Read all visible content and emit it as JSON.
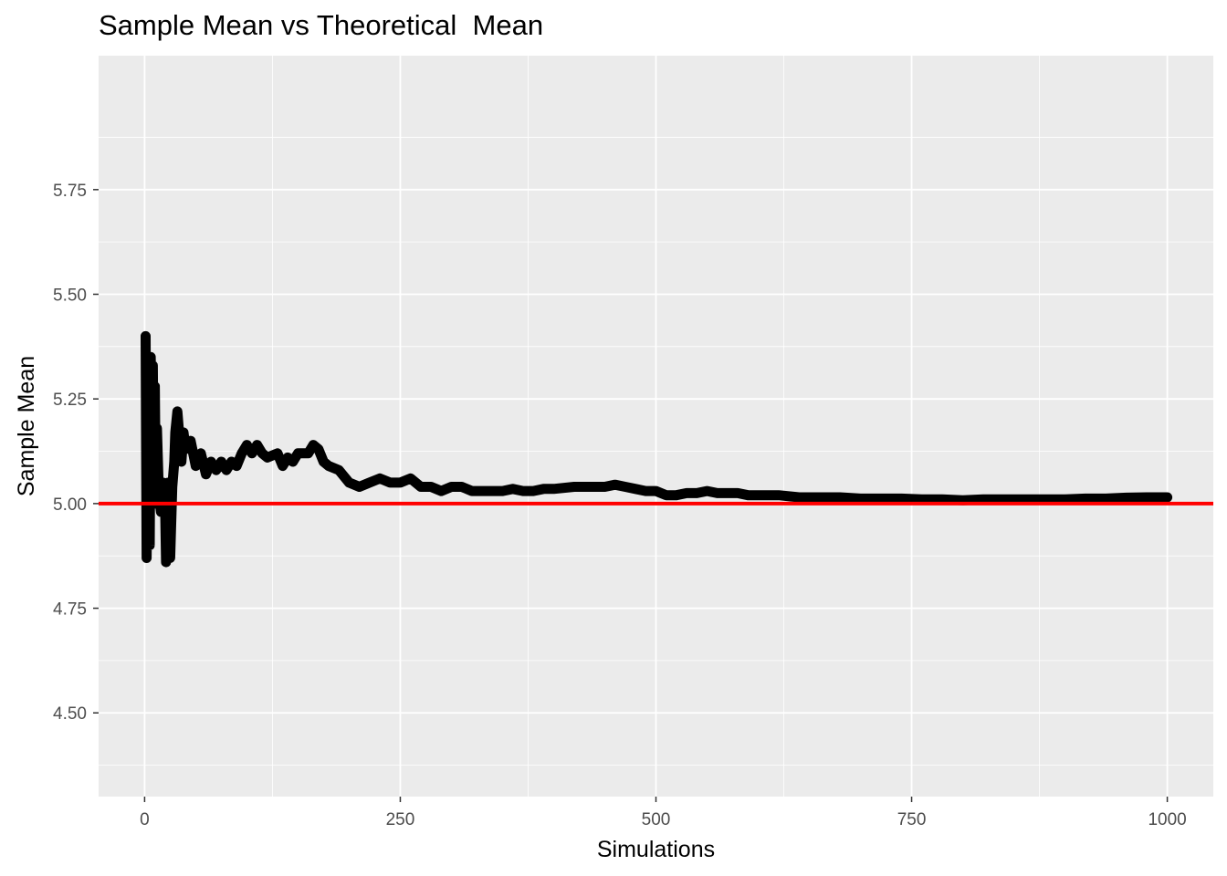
{
  "chart_data": {
    "type": "line",
    "title": "Sample Mean vs Theoretical  Mean",
    "xlabel": "Simulations",
    "ylabel": "Sample Mean",
    "xlim": [
      -45,
      1045
    ],
    "ylim": [
      4.3,
      6.07
    ],
    "x_ticks": [
      0,
      250,
      500,
      750,
      1000
    ],
    "x_tick_labels": [
      "0",
      "250",
      "500",
      "750",
      "1000"
    ],
    "y_ticks": [
      4.5,
      4.75,
      5.0,
      5.25,
      5.5,
      5.75
    ],
    "y_tick_labels": [
      "4.50",
      "4.75",
      "5.00",
      "5.25",
      "5.50",
      "5.75"
    ],
    "grid": true,
    "panel_background": "#ebebeb",
    "series": [
      {
        "color": "#000000",
        "points": [
          [
            1,
            5.4
          ],
          [
            2,
            4.87
          ],
          [
            3,
            5.15
          ],
          [
            4,
            5.0
          ],
          [
            5,
            4.9
          ],
          [
            6,
            5.35
          ],
          [
            7,
            5.2
          ],
          [
            8,
            5.33
          ],
          [
            9,
            5.02
          ],
          [
            10,
            5.28
          ],
          [
            11,
            5.0
          ],
          [
            12,
            5.18
          ],
          [
            14,
            5.02
          ],
          [
            16,
            4.98
          ],
          [
            18,
            5.05
          ],
          [
            20,
            5.0
          ],
          [
            21,
            4.86
          ],
          [
            22,
            4.9
          ],
          [
            23,
            5.05
          ],
          [
            25,
            4.87
          ],
          [
            27,
            5.04
          ],
          [
            29,
            5.1
          ],
          [
            30,
            5.17
          ],
          [
            32,
            5.22
          ],
          [
            34,
            5.16
          ],
          [
            36,
            5.1
          ],
          [
            38,
            5.17
          ],
          [
            40,
            5.13
          ],
          [
            45,
            5.15
          ],
          [
            50,
            5.09
          ],
          [
            55,
            5.12
          ],
          [
            60,
            5.07
          ],
          [
            65,
            5.1
          ],
          [
            70,
            5.08
          ],
          [
            75,
            5.1
          ],
          [
            80,
            5.08
          ],
          [
            85,
            5.1
          ],
          [
            90,
            5.09
          ],
          [
            95,
            5.12
          ],
          [
            100,
            5.14
          ],
          [
            105,
            5.12
          ],
          [
            110,
            5.14
          ],
          [
            115,
            5.12
          ],
          [
            120,
            5.11
          ],
          [
            130,
            5.12
          ],
          [
            135,
            5.09
          ],
          [
            140,
            5.11
          ],
          [
            145,
            5.1
          ],
          [
            150,
            5.12
          ],
          [
            160,
            5.12
          ],
          [
            165,
            5.14
          ],
          [
            170,
            5.13
          ],
          [
            175,
            5.1
          ],
          [
            180,
            5.09
          ],
          [
            190,
            5.08
          ],
          [
            200,
            5.05
          ],
          [
            210,
            5.04
          ],
          [
            220,
            5.05
          ],
          [
            230,
            5.06
          ],
          [
            240,
            5.05
          ],
          [
            250,
            5.05
          ],
          [
            260,
            5.06
          ],
          [
            270,
            5.04
          ],
          [
            280,
            5.04
          ],
          [
            290,
            5.03
          ],
          [
            300,
            5.04
          ],
          [
            310,
            5.04
          ],
          [
            320,
            5.03
          ],
          [
            330,
            5.03
          ],
          [
            340,
            5.03
          ],
          [
            350,
            5.03
          ],
          [
            360,
            5.035
          ],
          [
            370,
            5.03
          ],
          [
            380,
            5.03
          ],
          [
            390,
            5.035
          ],
          [
            400,
            5.035
          ],
          [
            420,
            5.04
          ],
          [
            440,
            5.04
          ],
          [
            450,
            5.04
          ],
          [
            460,
            5.045
          ],
          [
            470,
            5.04
          ],
          [
            480,
            5.035
          ],
          [
            490,
            5.03
          ],
          [
            500,
            5.03
          ],
          [
            510,
            5.02
          ],
          [
            520,
            5.02
          ],
          [
            530,
            5.025
          ],
          [
            540,
            5.025
          ],
          [
            550,
            5.03
          ],
          [
            560,
            5.025
          ],
          [
            570,
            5.025
          ],
          [
            580,
            5.025
          ],
          [
            590,
            5.02
          ],
          [
            600,
            5.02
          ],
          [
            620,
            5.02
          ],
          [
            640,
            5.015
          ],
          [
            660,
            5.015
          ],
          [
            680,
            5.015
          ],
          [
            700,
            5.012
          ],
          [
            720,
            5.012
          ],
          [
            740,
            5.012
          ],
          [
            760,
            5.01
          ],
          [
            780,
            5.01
          ],
          [
            800,
            5.008
          ],
          [
            820,
            5.01
          ],
          [
            840,
            5.01
          ],
          [
            860,
            5.01
          ],
          [
            880,
            5.01
          ],
          [
            900,
            5.01
          ],
          [
            920,
            5.012
          ],
          [
            940,
            5.012
          ],
          [
            960,
            5.014
          ],
          [
            980,
            5.015
          ],
          [
            1000,
            5.015
          ]
        ]
      }
    ],
    "hline": {
      "y": 5.0,
      "color": "#ff0000"
    }
  }
}
